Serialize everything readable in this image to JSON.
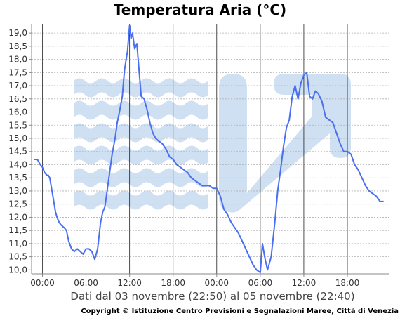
{
  "chart_data": {
    "type": "line",
    "title": "Temperatura Aria (°C)",
    "xlabel": "Dati dal 03 novembre (22:50) al 05 novembre (22:40)",
    "ylabel": "",
    "copyright": "Copyright © Istituzione Centro Previsioni e Segnalazioni Maree, Città di Venezia",
    "ylim": [
      9.85,
      19.35
    ],
    "xlim": [
      -1.5,
      47.8
    ],
    "y_ticks": [
      "10,0",
      "10,5",
      "11,0",
      "11,5",
      "12,0",
      "12,5",
      "13,0",
      "13,5",
      "14,0",
      "14,5",
      "15,0",
      "15,5",
      "16,0",
      "16,5",
      "17,0",
      "17,5",
      "18,0",
      "18,5",
      "19,0"
    ],
    "x_ticks": [
      "00:00",
      "06:00",
      "12:00",
      "18:00",
      "00:00",
      "06:00",
      "12:00",
      "18:00"
    ],
    "x_tick_hours": [
      0,
      6,
      12,
      18,
      24,
      30,
      36,
      42
    ],
    "grid": true,
    "line_color": "#4a6ff0",
    "watermark_color": "#cfe0f3",
    "series": [
      {
        "name": "",
        "x": [
          -1.2,
          -0.7,
          -0.3,
          0,
          0.3,
          0.6,
          0.8,
          1,
          1.5,
          1.8,
          2,
          2.3,
          2.6,
          3,
          3.3,
          3.6,
          4,
          4.4,
          4.8,
          5.2,
          5.6,
          6,
          6.4,
          6.8,
          7.2,
          7.6,
          8,
          8.3,
          8.6,
          8.9,
          9.2,
          9.6,
          10,
          10.3,
          10.6,
          11,
          11.3,
          11.7,
          12,
          12.2,
          12.4,
          12.7,
          13,
          13.3,
          13.6,
          14,
          14.4,
          14.8,
          15.2,
          15.6,
          16,
          16.5,
          17,
          17.5,
          18,
          18.5,
          19,
          19.5,
          20,
          20.5,
          21,
          21.5,
          22,
          22.5,
          23,
          23.5,
          24,
          24.5,
          25,
          25.5,
          26,
          26.5,
          27,
          27.5,
          28,
          28.5,
          29,
          29.5,
          30,
          30.3,
          30.6,
          31,
          31.5,
          32,
          32.4,
          32.8,
          33.2,
          33.6,
          34,
          34.4,
          34.8,
          35.2,
          35.6,
          36,
          36.4,
          36.8,
          37.2,
          37.6,
          38,
          38.5,
          39,
          39.5,
          40,
          40.5,
          41,
          41.5,
          42,
          42.5,
          43,
          43.5,
          44,
          44.5,
          45,
          45.5,
          46,
          46.5,
          47
        ],
        "y": [
          14.2,
          14.2,
          14.0,
          13.9,
          13.7,
          13.6,
          13.6,
          13.5,
          12.7,
          12.2,
          12.0,
          11.8,
          11.7,
          11.6,
          11.5,
          11.1,
          10.8,
          10.7,
          10.8,
          10.7,
          10.6,
          10.8,
          10.8,
          10.7,
          10.4,
          10.8,
          11.8,
          12.2,
          12.4,
          13.0,
          13.6,
          14.4,
          15.0,
          15.6,
          16.0,
          16.6,
          17.6,
          18.3,
          19.3,
          18.8,
          19.0,
          18.4,
          18.6,
          17.6,
          16.6,
          16.5,
          16.1,
          15.6,
          15.2,
          15.0,
          14.9,
          14.8,
          14.6,
          14.3,
          14.2,
          14.0,
          13.9,
          13.8,
          13.7,
          13.5,
          13.4,
          13.3,
          13.2,
          13.2,
          13.2,
          13.1,
          13.1,
          12.8,
          12.3,
          12.1,
          11.8,
          11.6,
          11.4,
          11.1,
          10.8,
          10.5,
          10.2,
          10.0,
          9.9,
          11.0,
          10.5,
          10.0,
          10.5,
          11.8,
          13.0,
          13.8,
          14.7,
          15.4,
          15.7,
          16.6,
          17.0,
          16.5,
          17.1,
          17.4,
          17.5,
          16.6,
          16.5,
          16.8,
          16.7,
          16.4,
          15.8,
          15.7,
          15.6,
          15.2,
          14.8,
          14.5,
          14.5,
          14.4,
          14.0,
          13.8,
          13.5,
          13.2,
          13.0,
          12.9,
          12.8,
          12.6,
          12.6
        ]
      }
    ]
  }
}
